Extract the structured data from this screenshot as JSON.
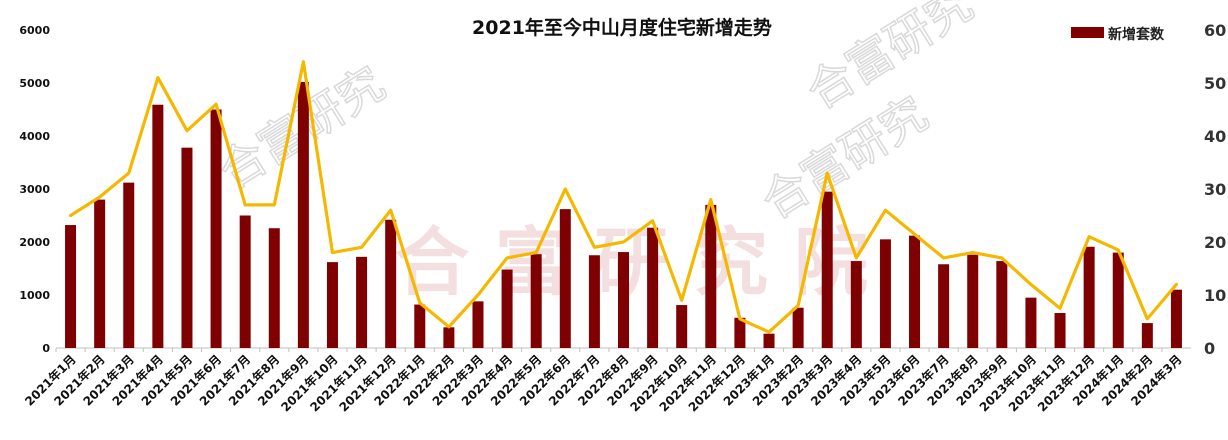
{
  "colors": {
    "bar": "#7f0000",
    "line": "#f5b800",
    "axis": "#bfbfbf"
  },
  "watermarks": [
    "合富研究",
    "合富研究",
    "合富研究",
    "合 富 研 究 院"
  ],
  "chart_data": {
    "type": "bar",
    "title": "2021年至今中山月度住宅新增走势",
    "legend": {
      "entries": [
        "新增套数"
      ],
      "placement": "top-right"
    },
    "categories": [
      "2021年1月",
      "2021年2月",
      "2021年3月",
      "2021年4月",
      "2021年5月",
      "2021年6月",
      "2021年7月",
      "2021年8月",
      "2021年9月",
      "2021年10月",
      "2021年11月",
      "2021年12月",
      "2022年1月",
      "2022年2月",
      "2022年3月",
      "2022年4月",
      "2022年5月",
      "2022年6月",
      "2022年7月",
      "2022年8月",
      "2022年9月",
      "2022年10月",
      "2022年11月",
      "2022年12月",
      "2023年1月",
      "2023年2月",
      "2023年3月",
      "2023年4月",
      "2023年5月",
      "2023年6月",
      "2023年7月",
      "2023年8月",
      "2023年9月",
      "2023年10月",
      "2023年11月",
      "2023年12月",
      "2024年1月",
      "2024年2月",
      "2024年3月"
    ],
    "series": [
      {
        "name": "新增套数",
        "type": "bar",
        "axis": "left",
        "values": [
          2320,
          2800,
          3120,
          4590,
          3780,
          4500,
          2500,
          2260,
          5020,
          1620,
          1720,
          2420,
          820,
          390,
          880,
          1480,
          1770,
          2620,
          1750,
          1810,
          2270,
          810,
          2700,
          570,
          270,
          760,
          2950,
          1640,
          2050,
          2120,
          1580,
          1760,
          1640,
          950,
          660,
          1910,
          1800,
          470,
          1100
        ]
      },
      {
        "type": "line",
        "axis": "right",
        "values": [
          25,
          28.5,
          33,
          51,
          41,
          46,
          27,
          27,
          54,
          18,
          19,
          26,
          8.5,
          4,
          10,
          17,
          18,
          30,
          19,
          20,
          24,
          9,
          28,
          5.5,
          3,
          8,
          33,
          17,
          26,
          21.5,
          17,
          18,
          17,
          12,
          7.5,
          21,
          18.5,
          5.5,
          12
        ]
      }
    ],
    "y_left": {
      "ylim": [
        0,
        6000
      ],
      "ticks": [
        "0",
        "1000",
        "2000",
        "3000",
        "4000",
        "5000",
        "6000"
      ]
    },
    "y_right": {
      "ylim": [
        0,
        60
      ],
      "ticks": [
        "0",
        "10",
        "20",
        "30",
        "40",
        "50",
        "60"
      ]
    },
    "grid": false
  }
}
